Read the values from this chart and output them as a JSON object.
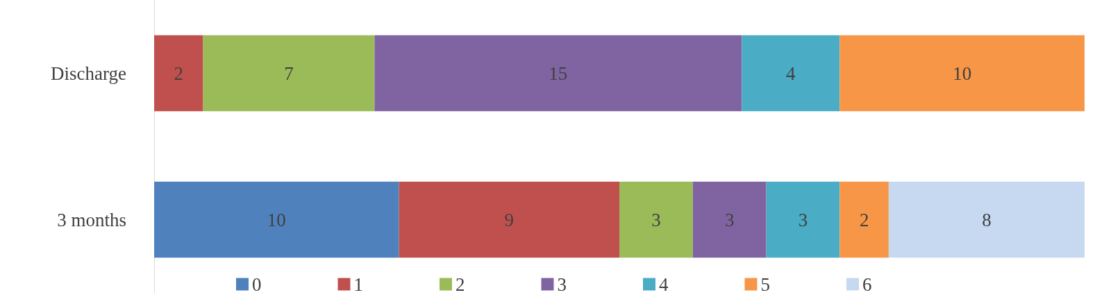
{
  "chart_data": {
    "type": "bar",
    "orientation": "horizontal",
    "stacked": true,
    "data_labels": true,
    "legend": "bottom",
    "categories": [
      "Discharge",
      "3 months"
    ],
    "series": [
      {
        "name": "0",
        "color": "#4f81bd",
        "values": [
          null,
          10
        ]
      },
      {
        "name": "1",
        "color": "#c0504d",
        "values": [
          2,
          9
        ]
      },
      {
        "name": "2",
        "color": "#9bbb59",
        "values": [
          7,
          3
        ]
      },
      {
        "name": "3",
        "color": "#8064a2",
        "values": [
          15,
          3
        ]
      },
      {
        "name": "4",
        "color": "#4bacc6",
        "values": [
          4,
          3
        ]
      },
      {
        "name": "5",
        "color": "#f79646",
        "values": [
          10,
          2
        ]
      },
      {
        "name": "6",
        "color": "#c6d9f1",
        "values": [
          null,
          8
        ]
      }
    ]
  }
}
